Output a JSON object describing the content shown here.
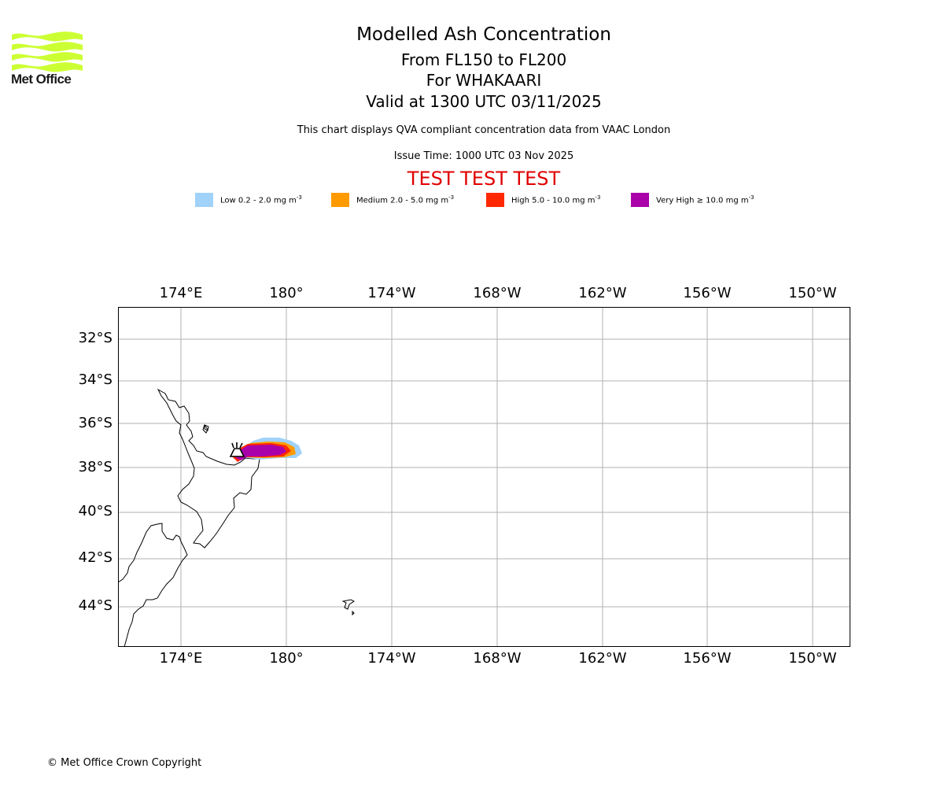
{
  "header": {
    "title": "Modelled Ash Concentration",
    "level": "From FL150 to FL200",
    "volcano": "For WHAKAARI",
    "valid": "Valid at 1300 UTC 03/11/2025",
    "description": "This chart displays QVA compliant concentration data from VAAC London",
    "issue_time": "Issue Time: 1000 UTC 03 Nov 2025",
    "test_banner": "TEST TEST TEST"
  },
  "logo": {
    "text": "Met Office",
    "color": "#ccff33"
  },
  "legend": [
    {
      "label": "Low 0.2 - 2.0 mg m",
      "exp": "-3",
      "color": "#a0d2fa"
    },
    {
      "label": "Medium 2.0 - 5.0 mg m",
      "exp": "-3",
      "color": "#ff9b00"
    },
    {
      "label": "High 5.0 - 10.0 mg m",
      "exp": "-3",
      "color": "#ff2800"
    },
    {
      "label": "Very High ≥ 10.0 mg m",
      "exp": "-3",
      "color": "#aa00aa"
    }
  ],
  "map": {
    "lon_ticks": [
      "174°E",
      "180°",
      "174°W",
      "168°W",
      "162°W",
      "156°W",
      "150°W"
    ],
    "lat_ticks": [
      "32°S",
      "34°S",
      "36°S",
      "38°S",
      "40°S",
      "42°S",
      "44°S"
    ],
    "grid_color": "#b0b0b0"
  },
  "footer": {
    "copyright": "© Met Office Crown Copyright"
  }
}
